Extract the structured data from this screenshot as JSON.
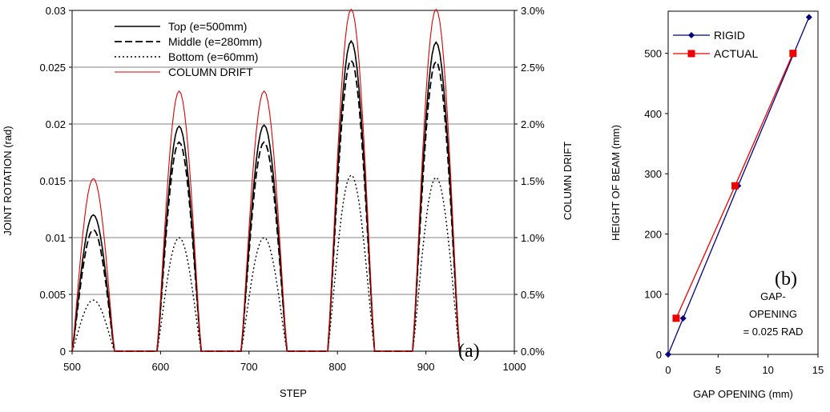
{
  "chart_data": [
    {
      "id": "a",
      "type": "line",
      "panel_tag": "(a)",
      "xlabel": "STEP",
      "ylabel": "JOINT ROTATION (rad)",
      "y2label": "COLUMN DRIFT",
      "xlim": [
        500,
        1000
      ],
      "ylim": [
        0,
        0.03
      ],
      "y2lim": [
        0,
        0.03
      ],
      "xticks": [
        "500",
        "600",
        "700",
        "800",
        "900",
        "1000"
      ],
      "yticks": [
        "0",
        "0.005",
        "0.01",
        "0.015",
        "0.02",
        "0.025",
        "0.03"
      ],
      "y2ticks": [
        "0.0%",
        "0.5%",
        "1.0%",
        "1.5%",
        "2.0%",
        "2.5%",
        "3.0%"
      ],
      "grid": "horizontal",
      "legend_position": "top-left",
      "cycles": [
        {
          "start": 500,
          "peak": 522,
          "end": 548
        },
        {
          "start": 596,
          "peak": 621,
          "end": 646
        },
        {
          "start": 691,
          "peak": 717,
          "end": 743
        },
        {
          "start": 789,
          "peak": 815,
          "end": 842
        },
        {
          "start": 885,
          "peak": 911,
          "end": 938
        }
      ],
      "series": [
        {
          "name": "Top (e=500mm)",
          "style": "solid",
          "color": "#000000",
          "peaks": [
            0.012,
            0.0198,
            0.0199,
            0.0273,
            0.0272
          ]
        },
        {
          "name": "Middle (e=280mm)",
          "style": "dashed",
          "color": "#000000",
          "peaks": [
            0.0107,
            0.0184,
            0.0184,
            0.0256,
            0.0255
          ]
        },
        {
          "name": "Bottom (e=60mm)",
          "style": "dotted",
          "color": "#000000",
          "peaks": [
            0.0045,
            0.01,
            0.01,
            0.0155,
            0.0153
          ]
        },
        {
          "name": "COLUMN DRIFT",
          "style": "solid",
          "color": "#dd0000",
          "peaks": [
            0.0152,
            0.0229,
            0.0229,
            0.0301,
            0.0301
          ]
        }
      ]
    },
    {
      "id": "b",
      "type": "line",
      "panel_tag": "(b)",
      "xlabel": "GAP OPENING (mm)",
      "ylabel": "HEIGHT OF BEAM (mm)",
      "xlim": [
        0,
        15
      ],
      "ylim": [
        0,
        570
      ],
      "xticks": [
        0,
        5,
        10,
        15
      ],
      "yticks": [
        0,
        100,
        200,
        300,
        400,
        500
      ],
      "legend_position": "top-left",
      "annotation": [
        "GAP-",
        "OPENING",
        "= 0.025 RAD"
      ],
      "series": [
        {
          "name": "RIGID",
          "color": "#000080",
          "marker": "diamond",
          "x": [
            0,
            1.5,
            7,
            14.1
          ],
          "y": [
            0,
            60,
            280,
            560
          ]
        },
        {
          "name": "ACTUAL",
          "color": "#ee0000",
          "marker": "square",
          "x": [
            0.8,
            6.7,
            12.5
          ],
          "y": [
            60,
            280,
            500
          ]
        }
      ]
    }
  ]
}
